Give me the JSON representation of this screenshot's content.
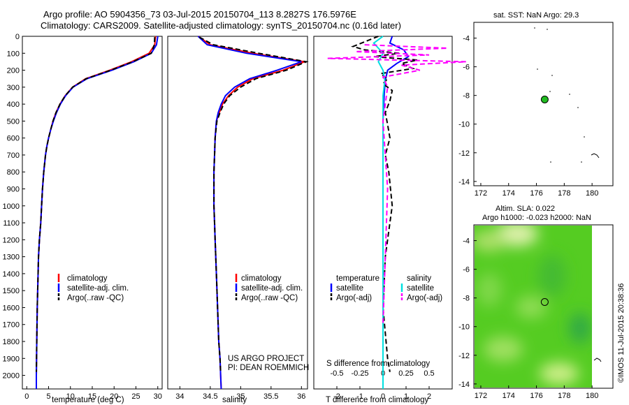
{
  "header": {
    "line1": "Argo profile: AO 5904356_73 03-Jul-2015 20150704_113 8.2827S 176.5976E",
    "line2": "Climatology: CARS2009. Satellite-adjusted climatology: synTS_20150704.nc (0.16d later)"
  },
  "colors": {
    "climatology": "#ff0000",
    "satellite": "#0000ff",
    "argo": "#000000",
    "salinity_satellite": "#00e0e0",
    "salinity_argo": "#ff00ff",
    "float_marker": "#22bb22"
  },
  "credits": {
    "project": "US ARGO PROJECT",
    "pi": "PI: DEAN ROEMMICH",
    "imos": "©IMOS 11-Jul-2015 20:38:36"
  },
  "legend_profile": {
    "climatology": "climatology",
    "satellite": "satellite-adj. clim.",
    "argo": "Argo(..raw -QC)"
  },
  "legend_diff": {
    "temperature_header": "temperature",
    "salinity_header": "salinity",
    "t_satellite": "satellite",
    "t_argo": "Argo(-adj)",
    "s_satellite": "satellite",
    "s_argo": "Argo(-adj)"
  },
  "map_top": {
    "title": "sat. SST: NaN Argo: 29.3",
    "float_lon": 176.5976,
    "float_lat": -8.2827
  },
  "map_bottom": {
    "title1": "Altim. SLA: 0.022",
    "title2": "Argo h1000: -0.023 h2000: NaN"
  },
  "chart_data": [
    {
      "type": "line",
      "id": "temperature",
      "xlabel": "temperature (deg C)",
      "ylabel": "",
      "xlim": [
        -1,
        31
      ],
      "ylim": [
        2080,
        0
      ],
      "xticks": [
        0,
        5,
        10,
        15,
        20,
        25,
        30
      ],
      "yticks": [
        0,
        100,
        200,
        300,
        400,
        500,
        600,
        700,
        800,
        900,
        1000,
        1100,
        1200,
        1300,
        1400,
        1500,
        1600,
        1700,
        1800,
        1900,
        2000
      ],
      "series": [
        {
          "name": "climatology",
          "color": "#ff0000",
          "dash": false,
          "x": [
            29.5,
            29.3,
            28.0,
            24.0,
            19.0,
            13.5,
            10.5,
            8.8,
            7.6,
            6.7,
            6.0,
            5.5,
            5.0,
            4.6,
            4.3,
            3.9,
            3.6,
            3.4,
            3.2,
            2.9,
            2.7,
            2.6,
            2.4,
            2.3,
            2.2,
            2.2
          ],
          "y": [
            0,
            50,
            100,
            150,
            200,
            250,
            300,
            350,
            400,
            450,
            500,
            550,
            600,
            650,
            700,
            800,
            900,
            1000,
            1100,
            1200,
            1300,
            1400,
            1600,
            1800,
            2000,
            2080
          ]
        },
        {
          "name": "satellite-adj. clim.",
          "color": "#0000ff",
          "dash": false,
          "x": [
            30.0,
            29.7,
            28.5,
            24.5,
            19.5,
            13.8,
            10.6,
            8.9,
            7.7,
            6.8,
            6.1,
            5.5,
            5.0,
            4.6,
            4.3,
            3.9,
            3.6,
            3.4,
            3.2,
            2.9,
            2.7,
            2.6,
            2.4,
            2.3,
            2.2,
            2.2
          ],
          "y": [
            0,
            50,
            100,
            150,
            200,
            250,
            300,
            350,
            400,
            450,
            500,
            550,
            600,
            650,
            700,
            800,
            900,
            1000,
            1100,
            1200,
            1300,
            1400,
            1600,
            1800,
            2000,
            2080
          ]
        },
        {
          "name": "Argo(..raw -QC)",
          "color": "#000000",
          "dash": true,
          "x": [
            29.3,
            29.2,
            28.5,
            24.3,
            19.2,
            13.6,
            10.5,
            8.8,
            7.6,
            6.7,
            6.0,
            5.5,
            5.0,
            4.6,
            4.3,
            3.9,
            3.6,
            3.4,
            3.2,
            2.9,
            2.7,
            2.6,
            2.4,
            2.3,
            2.2
          ],
          "y": [
            5,
            50,
            100,
            150,
            200,
            250,
            300,
            350,
            400,
            450,
            500,
            550,
            600,
            650,
            700,
            800,
            900,
            1000,
            1100,
            1200,
            1300,
            1400,
            1600,
            1800,
            1980
          ]
        }
      ]
    },
    {
      "type": "line",
      "id": "salinity",
      "xlabel": "salinity",
      "xlim": [
        33.8,
        36.1
      ],
      "ylim": [
        2080,
        0
      ],
      "xticks": [
        34,
        34.5,
        35,
        35.5,
        36
      ],
      "series": [
        {
          "name": "climatology",
          "color": "#ff0000",
          "dash": false,
          "x": [
            34.3,
            34.5,
            35.2,
            36.05,
            35.7,
            35.2,
            34.95,
            34.8,
            34.7,
            34.65,
            34.6,
            34.58,
            34.57,
            34.56,
            34.56,
            34.56,
            34.57,
            34.58,
            34.6,
            34.62,
            34.64,
            34.66,
            34.67,
            34.68
          ],
          "y": [
            0,
            50,
            100,
            150,
            200,
            250,
            300,
            350,
            400,
            450,
            500,
            600,
            700,
            800,
            900,
            1000,
            1100,
            1200,
            1400,
            1600,
            1800,
            1900,
            2000,
            2080
          ]
        },
        {
          "name": "satellite-adj. clim.",
          "color": "#0000ff",
          "dash": false,
          "x": [
            34.3,
            34.45,
            35.1,
            36.0,
            35.6,
            35.15,
            34.9,
            34.75,
            34.68,
            34.63,
            34.6,
            34.58,
            34.57,
            34.56,
            34.56,
            34.56,
            34.57,
            34.58,
            34.6,
            34.62,
            34.64,
            34.66,
            34.67,
            34.68
          ],
          "y": [
            0,
            50,
            100,
            150,
            200,
            250,
            300,
            350,
            400,
            450,
            500,
            600,
            700,
            800,
            900,
            1000,
            1100,
            1200,
            1400,
            1600,
            1800,
            1900,
            2000,
            2080
          ]
        },
        {
          "name": "Argo(..raw -QC)",
          "color": "#000000",
          "dash": true,
          "x": [
            34.32,
            34.55,
            35.3,
            36.08,
            35.75,
            35.25,
            35.0,
            34.82,
            34.72,
            34.66,
            34.61,
            34.58,
            34.57,
            34.56,
            34.56,
            34.56,
            34.57,
            34.58,
            34.6,
            34.62,
            34.64,
            34.66,
            34.67
          ],
          "y": [
            5,
            50,
            100,
            150,
            200,
            250,
            300,
            350,
            400,
            450,
            500,
            600,
            700,
            800,
            900,
            1000,
            1100,
            1200,
            1400,
            1600,
            1800,
            1900,
            1980
          ]
        }
      ]
    },
    {
      "type": "line",
      "id": "difference",
      "xlabel": "T difference from climatology",
      "top_label": "S difference from climatology",
      "xlim": [
        -3,
        3
      ],
      "ylim": [
        2080,
        0
      ],
      "xticks_T": [
        -2,
        -1,
        0,
        1,
        2
      ],
      "xticks_S": [
        -0.5,
        -0.25,
        0,
        0.25,
        0.5
      ],
      "series": [
        {
          "name": "T satellite",
          "color": "#0000ff",
          "dash": false,
          "x": [
            0.4,
            0.3,
            0.9,
            1.1,
            0.6,
            0.2,
            0.1,
            0.05,
            0.0,
            0.0,
            0.0,
            0.0,
            0.0
          ],
          "y": [
            0,
            40,
            80,
            120,
            160,
            200,
            260,
            350,
            500,
            700,
            1000,
            1500,
            2080
          ]
        },
        {
          "name": "T Argo(-adj)",
          "color": "#000000",
          "dash": true,
          "x": [
            -0.2,
            -1.3,
            -0.8,
            0.7,
            -0.4,
            1.5,
            0.8,
            1.3,
            -0.1,
            0.2,
            0.0,
            0.4,
            0.3,
            0.1,
            0.2,
            0.3,
            0.1,
            0.25,
            0.4,
            0.1,
            0.0,
            0.2,
            0.3
          ],
          "y": [
            0,
            60,
            80,
            100,
            120,
            140,
            160,
            190,
            220,
            250,
            280,
            320,
            380,
            450,
            520,
            600,
            700,
            800,
            1000,
            1300,
            1600,
            1900,
            1980
          ]
        },
        {
          "name": "S satellite",
          "color": "#00e0e0",
          "dash": false,
          "x": [
            0.0,
            -0.1,
            0.0,
            -0.05,
            0.0,
            0.02,
            0.0,
            0.0,
            0.0,
            0.0,
            0.0
          ],
          "y": [
            0,
            40,
            100,
            150,
            200,
            260,
            350,
            600,
            1000,
            1500,
            2080
          ]
        },
        {
          "name": "S Argo(-adj)",
          "color": "#ff00ff",
          "dash": true,
          "x": [
            -0.2,
            0.7,
            -0.3,
            0.5,
            -0.6,
            0.9,
            0.2,
            0.4,
            0.0,
            0.05,
            0.0,
            0.05,
            0.0
          ],
          "y": [
            50,
            70,
            90,
            110,
            130,
            150,
            170,
            200,
            240,
            300,
            500,
            900,
            1700
          ]
        }
      ]
    },
    {
      "type": "scatter",
      "id": "map-top",
      "xlim": [
        171.5,
        181.5
      ],
      "ylim": [
        -14.3,
        -2.9
      ],
      "xticks": [
        172,
        174,
        176,
        178,
        180
      ],
      "yticks": [
        -4,
        -6,
        -8,
        -10,
        -12,
        -14
      ]
    },
    {
      "type": "heatmap",
      "id": "map-bottom",
      "xlim": [
        171.5,
        181.5
      ],
      "ylim": [
        -14.3,
        -2.9
      ],
      "xticks": [
        172,
        174,
        176,
        178,
        180
      ],
      "yticks": [
        -4,
        -6,
        -8,
        -10,
        -12,
        -14
      ]
    }
  ]
}
